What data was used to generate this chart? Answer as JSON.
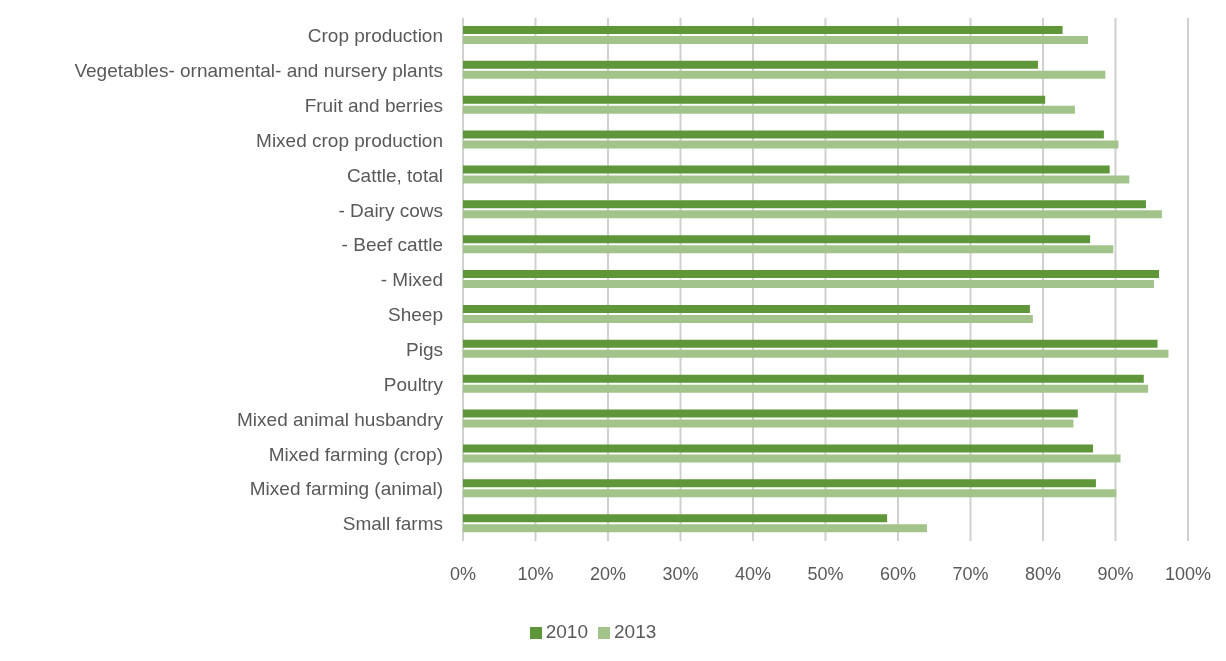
{
  "chart_data": {
    "type": "bar",
    "orientation": "horizontal",
    "categories": [
      "Crop production",
      "Vegetables- ornamental- and nursery plants",
      "Fruit and berries",
      "Mixed crop production",
      "Cattle, total",
      "- Dairy cows",
      "- Beef cattle",
      "- Mixed",
      "Sheep",
      "Pigs",
      "Poultry",
      "Mixed animal husbandry",
      "Mixed farming (crop)",
      "Mixed farming (animal)",
      "Small farms"
    ],
    "series": [
      {
        "name": "2010",
        "color": "#5f963a",
        "values": [
          82.7,
          79.3,
          80.3,
          88.4,
          89.2,
          94.2,
          86.5,
          96.0,
          78.2,
          95.8,
          93.9,
          84.8,
          86.9,
          87.3,
          58.5
        ]
      },
      {
        "name": "2013",
        "color": "#a2c48a",
        "values": [
          86.2,
          88.6,
          84.4,
          90.4,
          91.9,
          96.4,
          89.7,
          95.3,
          78.6,
          97.3,
          94.5,
          84.2,
          90.7,
          90.1,
          64.0
        ]
      }
    ],
    "xlim": [
      0,
      100
    ],
    "xticks": [
      {
        "value": 0,
        "label": "0%"
      },
      {
        "value": 10,
        "label": "10%"
      },
      {
        "value": 20,
        "label": "20%"
      },
      {
        "value": 30,
        "label": "30%"
      },
      {
        "value": 40,
        "label": "40%"
      },
      {
        "value": 50,
        "label": "50%"
      },
      {
        "value": 60,
        "label": "60%"
      },
      {
        "value": 70,
        "label": "70%"
      },
      {
        "value": 80,
        "label": "80%"
      },
      {
        "value": 90,
        "label": "90%"
      },
      {
        "value": 100,
        "label": "100%"
      }
    ],
    "grid": "x",
    "legend": "bottom"
  }
}
